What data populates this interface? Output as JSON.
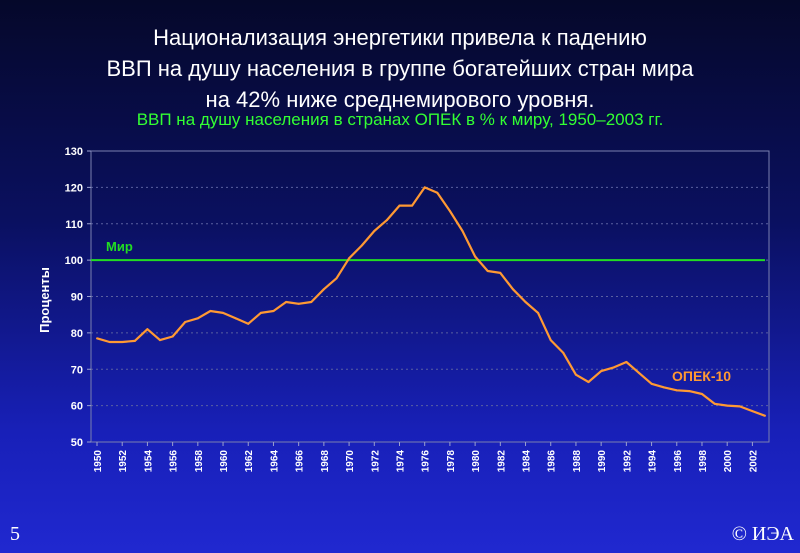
{
  "slide": {
    "title_lines": [
      "Национализация энергетики привела к падению",
      "ВВП на душу населения в группе богатейших стран мира",
      "на 42% ниже среднемирового уровня."
    ],
    "number": "5",
    "copyright": "© ИЭА"
  },
  "chart_data": {
    "type": "line",
    "title": "ВВП на душу населения в странах ОПЕК в % к миру, 1950–2003 гг.",
    "xlabel": "",
    "ylabel": "Проценты",
    "xlim": [
      1950,
      2003
    ],
    "ylim": [
      50,
      130
    ],
    "yticks": [
      50,
      60,
      70,
      80,
      90,
      100,
      110,
      120,
      130
    ],
    "xticks": [
      "1950",
      "1952",
      "1954",
      "1956",
      "1958",
      "1960",
      "1962",
      "1964",
      "1966",
      "1968",
      "1970",
      "1972",
      "1974",
      "1976",
      "1978",
      "1980",
      "1982",
      "1984",
      "1986",
      "1988",
      "1990",
      "1992",
      "1994",
      "1996",
      "1998",
      "2000",
      "2002"
    ],
    "grid": "horizontal",
    "colors": {
      "series": "#ff9933",
      "reference": "#22dd22",
      "axis_text": "#ffffff"
    },
    "reference_line": {
      "name": "Мир",
      "value": 100
    },
    "series": [
      {
        "name": "ОПЕК-10",
        "x": [
          1950,
          1951,
          1952,
          1953,
          1954,
          1955,
          1956,
          1957,
          1958,
          1959,
          1960,
          1961,
          1962,
          1963,
          1964,
          1965,
          1966,
          1967,
          1968,
          1969,
          1970,
          1971,
          1972,
          1973,
          1974,
          1975,
          1976,
          1977,
          1978,
          1979,
          1980,
          1981,
          1982,
          1983,
          1984,
          1985,
          1986,
          1987,
          1988,
          1989,
          1990,
          1991,
          1992,
          1993,
          1994,
          1995,
          1996,
          1997,
          1998,
          1999,
          2000,
          2001,
          2002,
          2003
        ],
        "y": [
          78.5,
          77.5,
          77.5,
          77.8,
          81,
          78,
          79,
          83,
          84,
          86,
          85.5,
          84,
          82.5,
          85.5,
          86,
          88.5,
          88,
          88.5,
          92,
          95,
          100.5,
          104,
          108,
          111,
          115,
          115,
          120,
          118.5,
          113.5,
          108,
          101,
          97,
          96.5,
          92,
          88.5,
          85.5,
          78,
          74.5,
          68.5,
          66.5,
          69.5,
          70.5,
          72,
          69,
          66,
          65,
          64.2,
          64,
          63.2,
          60.5,
          60,
          59.8,
          58.5,
          57.2
        ]
      }
    ]
  }
}
